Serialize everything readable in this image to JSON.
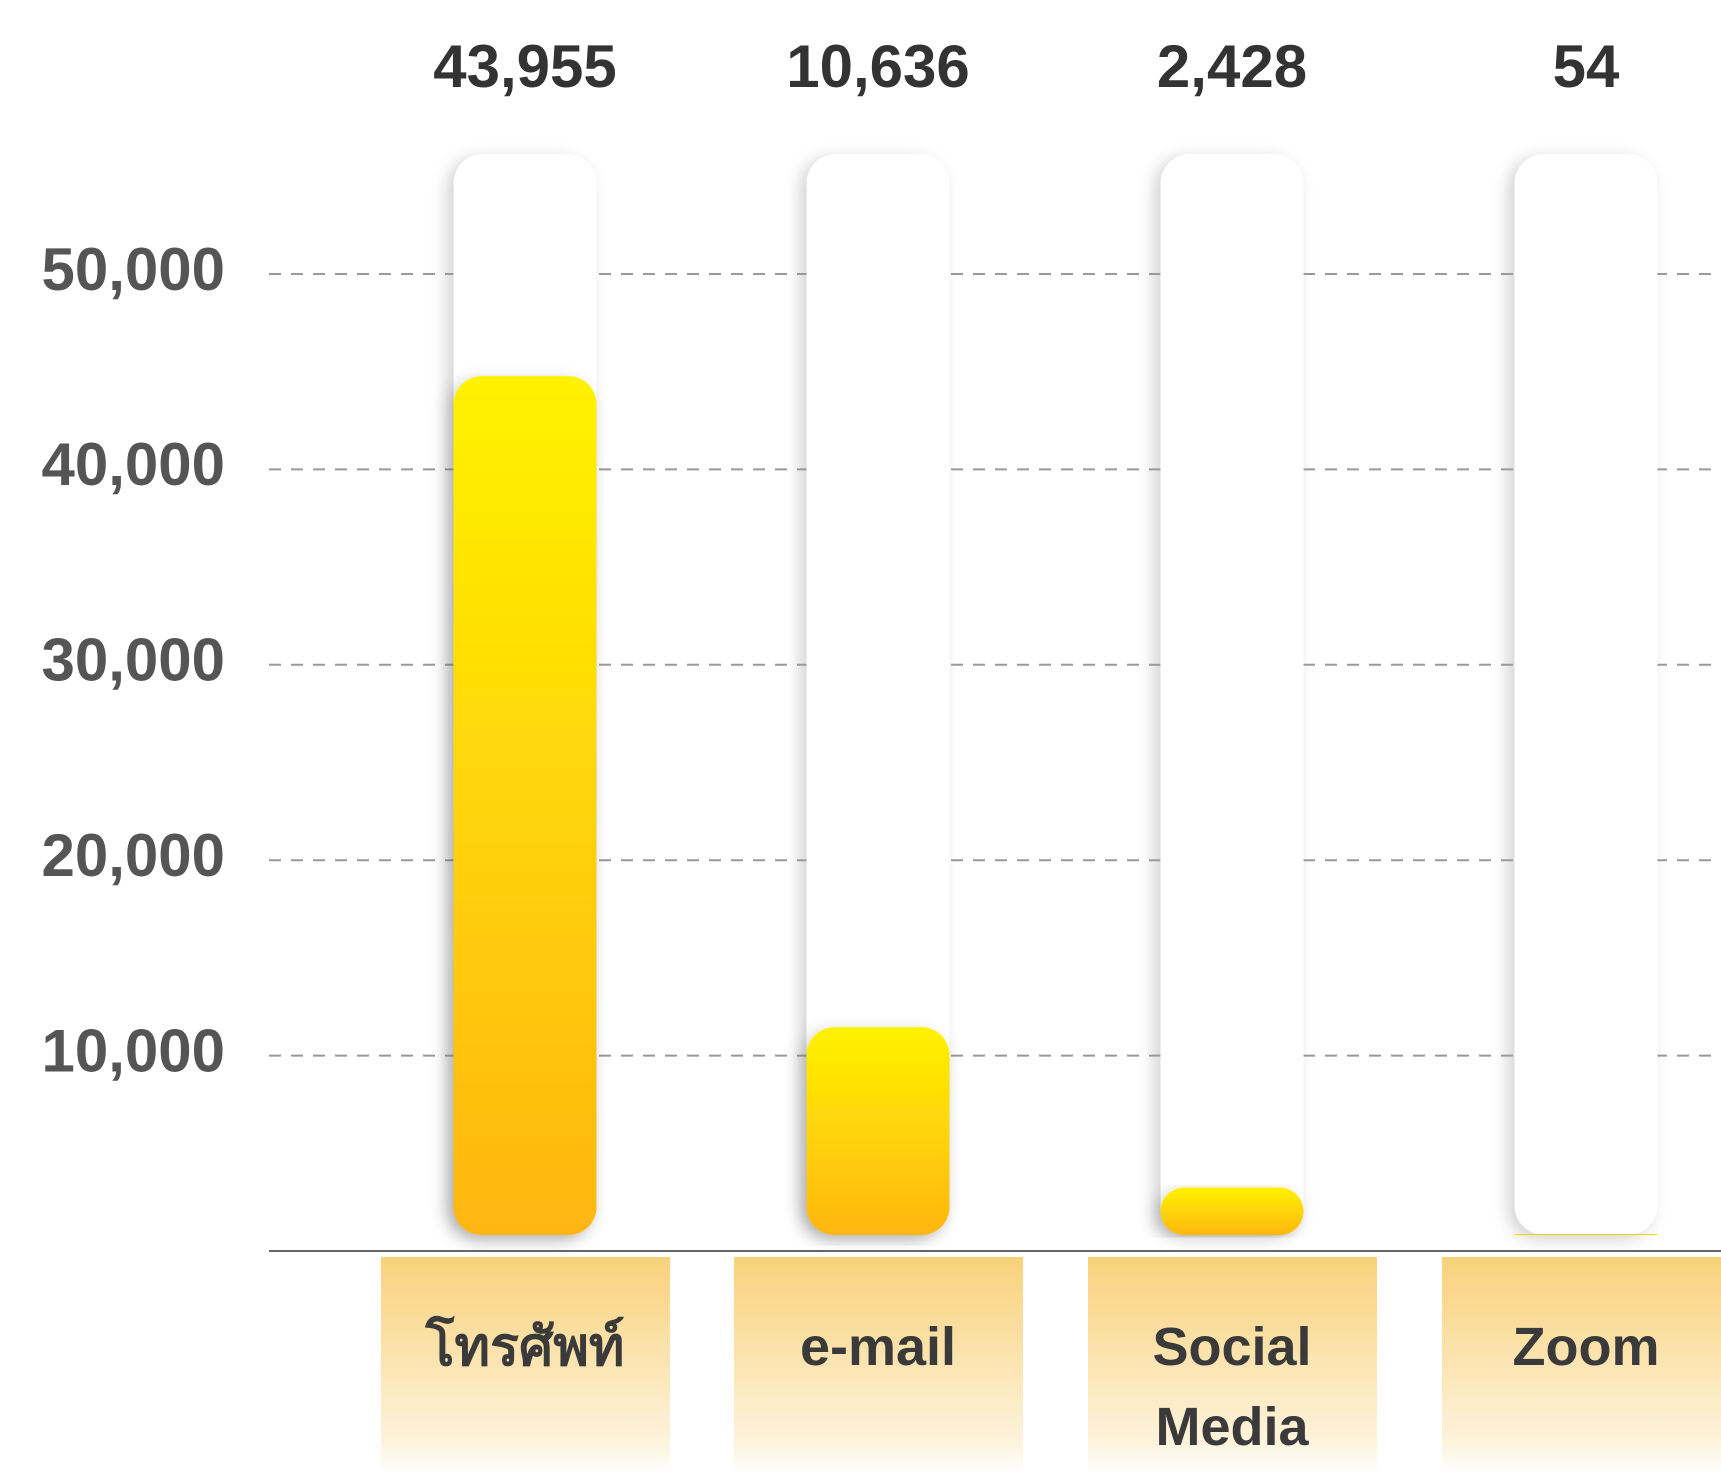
{
  "chart_data": {
    "type": "bar",
    "categories": [
      "โทรศัพท์",
      "e-mail",
      "Social Media",
      "Zoom"
    ],
    "values": [
      43955,
      10636,
      2428,
      54
    ],
    "value_labels": [
      "43,955",
      "10,636",
      "2,428",
      "54"
    ],
    "color": "#ffc20e",
    "ylim": [
      0,
      50000
    ],
    "yticks": [
      {
        "value": 10000,
        "label": "10,000"
      },
      {
        "value": 20000,
        "label": "20,000"
      },
      {
        "value": 30000,
        "label": "30,000"
      },
      {
        "value": 40000,
        "label": "40,000"
      },
      {
        "value": 50000,
        "label": "50,000"
      }
    ],
    "grid": true
  }
}
